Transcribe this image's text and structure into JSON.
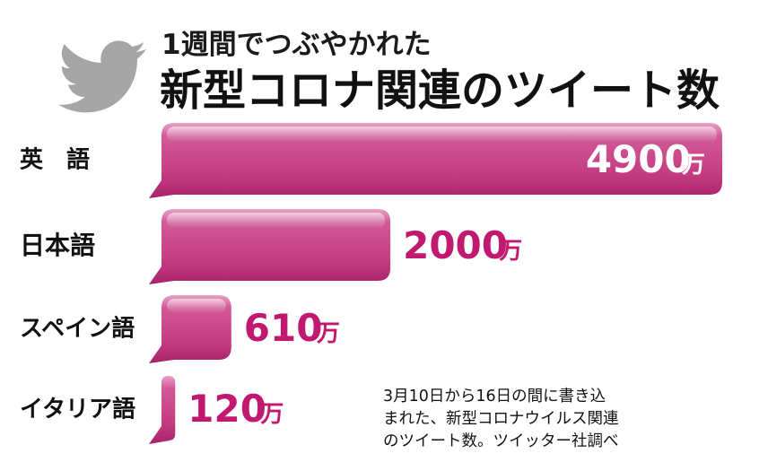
{
  "header": {
    "icon": "twitter-bird-icon",
    "subtitle": "1週間でつぶやかれた",
    "title": "新型コロナ関連のツイート数"
  },
  "note": {
    "lines": [
      "3月10日から16日の間に書き込",
      "まれた、新型コロナウイルス関連",
      "のツイート数。ツイッター社調べ"
    ]
  },
  "colors": {
    "bar": "#c8357f",
    "bar_light": "#e089b6",
    "bar_dark": "#a41f64",
    "value_outside": "#c0196f",
    "value_inside": "#ffffff",
    "icon": "#a6a6a6"
  },
  "chart_data": {
    "type": "bar",
    "orientation": "horizontal",
    "title": "新型コロナ関連のツイート数",
    "subtitle": "1週間でつぶやかれた",
    "categories": [
      "英　語",
      "日本語",
      "スペイン語",
      "イタリア語"
    ],
    "values": [
      4900,
      2000,
      610,
      120
    ],
    "value_labels": [
      "4900",
      "2000",
      "610",
      "120"
    ],
    "unit": "万",
    "xlim": [
      0,
      4900
    ],
    "grid": false,
    "legend": "none"
  }
}
